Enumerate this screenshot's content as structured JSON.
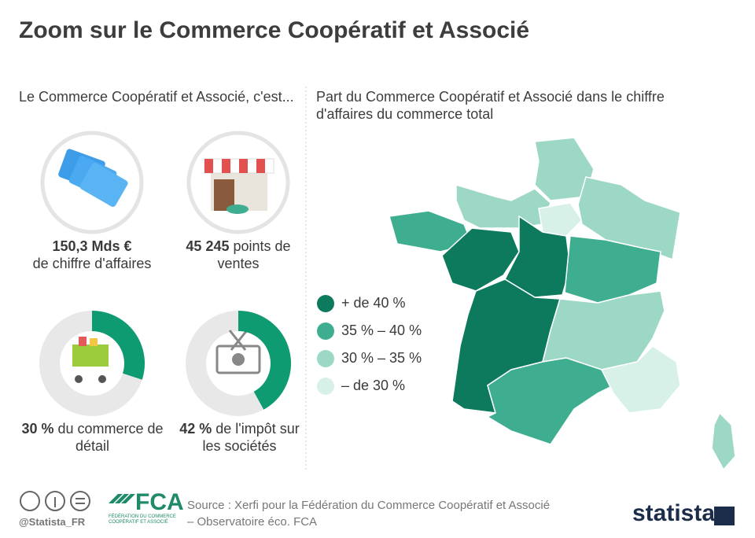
{
  "header": {
    "title": "Zoom sur le Commerce Coopératif et Associé"
  },
  "left_panel": {
    "heading": "Le Commerce Coopératif et Associé, c'est...",
    "stats": [
      {
        "value_label": "150,3 Mds €",
        "caption": "de chiffre d'affaires"
      },
      {
        "value_label": "45 245",
        "caption": "points de ventes"
      }
    ],
    "donuts": [
      {
        "value": 30,
        "value_label": "30 %",
        "caption": "du commerce de détail",
        "color": "#0e9b72"
      },
      {
        "value": 42,
        "value_label": "42 %",
        "caption": "de l'impôt sur les sociétés",
        "color": "#0e9b72"
      }
    ]
  },
  "map_panel": {
    "heading": "Part du Commerce Coopératif et Associé dans le chiffre d'affaires du commerce total",
    "legend": [
      {
        "label": "+ de 40 %",
        "color": "#0d7a5d"
      },
      {
        "label": "35 % – 40 %",
        "color": "#3fae90"
      },
      {
        "label": "30 % – 35 %",
        "color": "#9dd8c6"
      },
      {
        "label": "– de 30 %",
        "color": "#d7f0e8"
      }
    ]
  },
  "footer": {
    "handle": "@Statista_FR",
    "logo": "FCA",
    "logo_sub": "FÉDÉRATION DU COMMERCE COOPÉRATIF ET ASSOCIÉ",
    "source": "Source : Xerfi pour la Fédération du Commerce Coopératif et Associé – Observatoire éco. FCA",
    "brand": "statista"
  }
}
